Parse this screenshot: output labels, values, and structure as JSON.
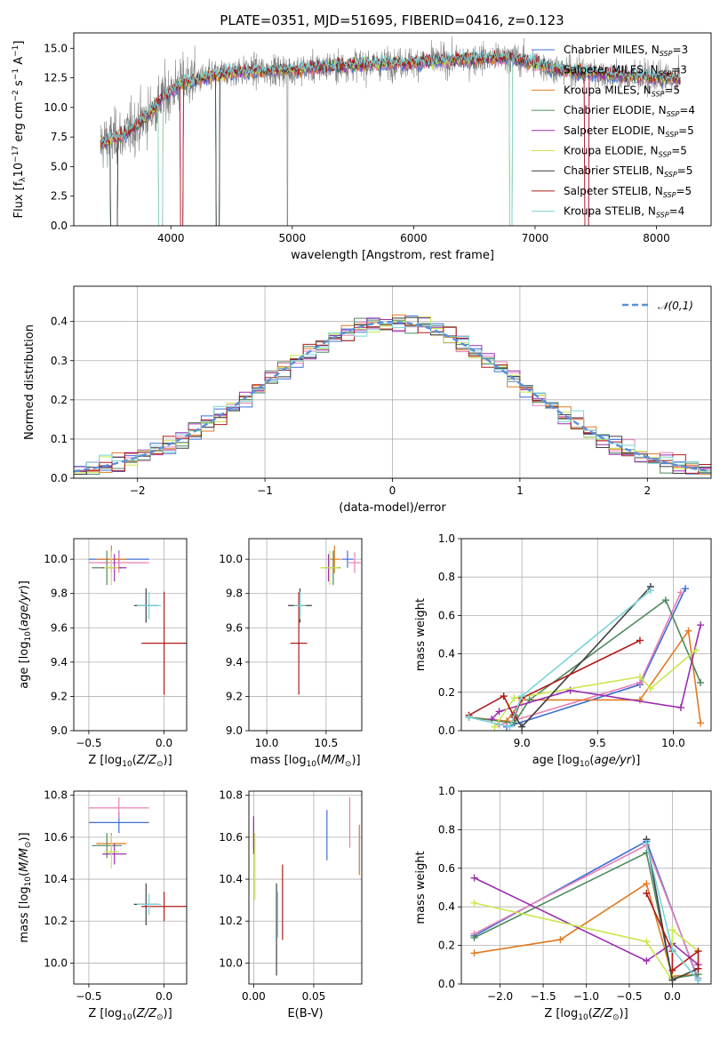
{
  "figure": {
    "title": "PLATE=0351, MJD=51695, FIBERID=0416, z=0.123"
  },
  "colors": {
    "data_spectrum": "#808080",
    "normal_curve": "#5b8fd9",
    "grid": "#b0b0b0"
  },
  "models": [
    {
      "name": "Chabrier MILES, N_SSP=3",
      "imf": "Chabrier",
      "lib": "MILES",
      "nssp": 3,
      "color": "#3f6fd6"
    },
    {
      "name": "Salpeter MILES, N_SSP=3",
      "imf": "Salpeter",
      "lib": "MILES",
      "nssp": 3,
      "color": "#e880b6"
    },
    {
      "name": "Kroupa MILES, N_SSP=5",
      "imf": "Kroupa",
      "lib": "MILES",
      "nssp": 5,
      "color": "#e07a22"
    },
    {
      "name": "Chabrier ELODIE, N_SSP=4",
      "imf": "Chabrier",
      "lib": "ELODIE",
      "nssp": 4,
      "color": "#4f8a5e"
    },
    {
      "name": "Salpeter ELODIE, N_SSP=5",
      "imf": "Salpeter",
      "lib": "ELODIE",
      "nssp": 5,
      "color": "#9b2fae"
    },
    {
      "name": "Kroupa ELODIE, N_SSP=5",
      "imf": "Kroupa",
      "lib": "ELODIE",
      "nssp": 5,
      "color": "#c8e84e"
    },
    {
      "name": "Chabrier STELIB, N_SSP=5",
      "imf": "Chabrier",
      "lib": "STELIB",
      "nssp": 5,
      "color": "#3f3f3f"
    },
    {
      "name": "Salpeter STELIB, N_SSP=5",
      "imf": "Salpeter",
      "lib": "STELIB",
      "nssp": 5,
      "color": "#b01b1b"
    },
    {
      "name": "Kroupa STELIB, N_SSP=4",
      "imf": "Kroupa",
      "lib": "STELIB",
      "nssp": 4,
      "color": "#7ad4d8"
    }
  ],
  "chart_data": [
    {
      "id": "spectrum",
      "type": "line",
      "xlabel": "wavelength [Angstrom, rest frame]",
      "ylabel": "Flux [f_λ10^-17 erg cm^-2 s^-1 A^-1]",
      "xlim": [
        3200,
        8450
      ],
      "ylim": [
        0,
        16.3
      ],
      "xticks": [
        4000,
        5000,
        6000,
        7000,
        8000
      ],
      "yticks": [
        0.0,
        2.5,
        5.0,
        7.5,
        10.0,
        12.5,
        15.0
      ],
      "grid": false,
      "legend": "top-right",
      "data_wavelength_range": [
        3420,
        8200
      ],
      "continuum": [
        [
          3420,
          7.0
        ],
        [
          3600,
          7.6
        ],
        [
          3800,
          9.2
        ],
        [
          3950,
          11.0
        ],
        [
          4100,
          12.1
        ],
        [
          4500,
          13.0
        ],
        [
          5000,
          13.2
        ],
        [
          5500,
          13.6
        ],
        [
          6000,
          13.8
        ],
        [
          6500,
          14.1
        ],
        [
          6800,
          14.2
        ],
        [
          7200,
          13.2
        ],
        [
          7600,
          12.8
        ],
        [
          8000,
          12.5
        ],
        [
          8200,
          12.4
        ]
      ]
    },
    {
      "id": "residuals",
      "type": "histogram",
      "xlabel": "(data-model)/error",
      "ylabel": "Normed distribution",
      "xlim": [
        -2.5,
        2.5
      ],
      "ylim": [
        0,
        0.49
      ],
      "xticks": [
        -2,
        -1,
        0,
        1,
        2
      ],
      "yticks": [
        0.0,
        0.1,
        0.2,
        0.3,
        0.4
      ],
      "grid": true,
      "legend": "top-right",
      "reference": {
        "name": "𝒩(0,1)",
        "mean": 0,
        "sigma": 1
      },
      "bin_width": 0.1
    },
    {
      "id": "age_vs_Z",
      "type": "errorbar",
      "xlabel": "Z [log10(Z/Z☉)]",
      "ylabel": "age  [log10(age/yr)]",
      "xlim": [
        -0.6,
        0.15
      ],
      "ylim": [
        9.0,
        10.12
      ],
      "xticks": [
        -0.5,
        0.0
      ],
      "yticks": [
        9.0,
        9.2,
        9.4,
        9.6,
        9.8,
        10.0
      ],
      "grid": true,
      "points": [
        {
          "model": 0,
          "x": -0.3,
          "xerr": 0.2,
          "y": 10.0,
          "yerr": 0.05
        },
        {
          "model": 1,
          "x": -0.3,
          "xerr": 0.2,
          "y": 9.98,
          "yerr": 0.06
        },
        {
          "model": 2,
          "x": -0.35,
          "xerr": 0.1,
          "y": 10.0,
          "yerr": 0.08
        },
        {
          "model": 3,
          "x": -0.38,
          "xerr": 0.1,
          "y": 9.95,
          "yerr": 0.1
        },
        {
          "model": 4,
          "x": -0.33,
          "xerr": 0.08,
          "y": 9.95,
          "yerr": 0.08
        },
        {
          "model": 5,
          "x": -0.35,
          "xerr": 0.05,
          "y": 9.95,
          "yerr": 0.1
        },
        {
          "model": 6,
          "x": -0.12,
          "xerr": 0.08,
          "y": 9.73,
          "yerr": 0.1
        },
        {
          "model": 7,
          "x": 0.0,
          "xerr": 0.15,
          "y": 9.51,
          "yerr": 0.3
        },
        {
          "model": 8,
          "x": -0.1,
          "xerr": 0.08,
          "y": 9.73,
          "yerr": 0.08
        }
      ]
    },
    {
      "id": "age_vs_mass",
      "type": "errorbar",
      "xlabel": "mass [log10(M/M☉)]",
      "ylabel": "",
      "xlim": [
        9.85,
        10.8
      ],
      "ylim": [
        9.0,
        10.12
      ],
      "xticks": [
        10.0,
        10.5
      ],
      "yticks": [
        9.0,
        9.2,
        9.4,
        9.6,
        9.8,
        10.0
      ],
      "grid": true,
      "points": [
        {
          "model": 0,
          "x": 10.68,
          "xerr": 0.05,
          "y": 10.0,
          "yerr": 0.05
        },
        {
          "model": 1,
          "x": 10.74,
          "xerr": 0.05,
          "y": 9.98,
          "yerr": 0.06
        },
        {
          "model": 2,
          "x": 10.57,
          "xerr": 0.05,
          "y": 10.0,
          "yerr": 0.08
        },
        {
          "model": 3,
          "x": 10.56,
          "xerr": 0.06,
          "y": 9.95,
          "yerr": 0.1
        },
        {
          "model": 4,
          "x": 10.52,
          "xerr": 0.05,
          "y": 9.95,
          "yerr": 0.08
        },
        {
          "model": 5,
          "x": 10.53,
          "xerr": 0.08,
          "y": 9.95,
          "yerr": 0.1
        },
        {
          "model": 6,
          "x": 10.28,
          "xerr": 0.1,
          "y": 9.73,
          "yerr": 0.1
        },
        {
          "model": 7,
          "x": 10.27,
          "xerr": 0.07,
          "y": 9.51,
          "yerr": 0.3
        },
        {
          "model": 8,
          "x": 10.28,
          "xerr": 0.05,
          "y": 9.73,
          "yerr": 0.08
        }
      ]
    },
    {
      "id": "mass_vs_Z",
      "type": "errorbar",
      "xlabel": "Z [log10(Z/Z☉)]",
      "ylabel": "mass [log10(M/M☉)]",
      "xlim": [
        -0.6,
        0.15
      ],
      "ylim": [
        9.9,
        10.82
      ],
      "xticks": [
        -0.5,
        0.0
      ],
      "yticks": [
        10.0,
        10.2,
        10.4,
        10.6,
        10.8
      ],
      "grid": true,
      "points": [
        {
          "model": 0,
          "x": -0.3,
          "xerr": 0.2,
          "y": 10.67,
          "yerr": 0.05
        },
        {
          "model": 1,
          "x": -0.3,
          "xerr": 0.2,
          "y": 10.74,
          "yerr": 0.05
        },
        {
          "model": 2,
          "x": -0.35,
          "xerr": 0.1,
          "y": 10.57,
          "yerr": 0.05
        },
        {
          "model": 3,
          "x": -0.38,
          "xerr": 0.1,
          "y": 10.56,
          "yerr": 0.06
        },
        {
          "model": 4,
          "x": -0.33,
          "xerr": 0.08,
          "y": 10.52,
          "yerr": 0.05
        },
        {
          "model": 5,
          "x": -0.35,
          "xerr": 0.05,
          "y": 10.53,
          "yerr": 0.08
        },
        {
          "model": 6,
          "x": -0.12,
          "xerr": 0.08,
          "y": 10.28,
          "yerr": 0.1
        },
        {
          "model": 7,
          "x": 0.0,
          "xerr": 0.15,
          "y": 10.27,
          "yerr": 0.07
        },
        {
          "model": 8,
          "x": -0.1,
          "xerr": 0.08,
          "y": 10.28,
          "yerr": 0.05
        }
      ]
    },
    {
      "id": "mass_vs_ebv",
      "type": "errorbar",
      "xlabel": "E(B-V)",
      "ylabel": "",
      "xlim": [
        -0.004,
        0.09
      ],
      "ylim": [
        9.9,
        10.82
      ],
      "xticks": [
        0.0,
        0.05
      ],
      "yticks": [
        10.0,
        10.2,
        10.4,
        10.6,
        10.8
      ],
      "grid": true,
      "points": [
        {
          "model": 0,
          "x": 0.061,
          "xerr": 0,
          "y": 10.61,
          "yerr": 0.12
        },
        {
          "model": 1,
          "x": 0.08,
          "xerr": 0,
          "y": 10.67,
          "yerr": 0.12
        },
        {
          "model": 2,
          "x": 0.088,
          "xerr": 0,
          "y": 10.54,
          "yerr": 0.12
        },
        {
          "model": 3,
          "x": 0.0,
          "xerr": 0,
          "y": 10.62,
          "yerr": 0.08
        },
        {
          "model": 4,
          "x": 0.0,
          "xerr": 0,
          "y": 10.61,
          "yerr": 0.09
        },
        {
          "model": 5,
          "x": 0.001,
          "xerr": 0,
          "y": 10.46,
          "yerr": 0.16
        },
        {
          "model": 6,
          "x": 0.019,
          "xerr": 0,
          "y": 10.16,
          "yerr": 0.22
        },
        {
          "model": 7,
          "x": 0.024,
          "xerr": 0,
          "y": 10.29,
          "yerr": 0.18
        },
        {
          "model": 8,
          "x": 0.02,
          "xerr": 0,
          "y": 10.23,
          "yerr": 0.11
        }
      ]
    },
    {
      "id": "weight_vs_age",
      "type": "line",
      "xlabel": "age  [log10(age/yr)]",
      "ylabel": "mass weight",
      "xlim": [
        8.6,
        10.25
      ],
      "ylim": [
        0,
        1.0
      ],
      "xticks": [
        9.0,
        9.5,
        10.0
      ],
      "yticks": [
        0.0,
        0.2,
        0.4,
        0.6,
        0.8,
        1.0
      ],
      "grid": true,
      "series": [
        {
          "model": 0,
          "points": [
            [
              8.9,
              0.02
            ],
            [
              9.78,
              0.24
            ],
            [
              10.08,
              0.74
            ]
          ]
        },
        {
          "model": 1,
          "points": [
            [
              8.85,
              0.03
            ],
            [
              9.78,
              0.25
            ],
            [
              10.05,
              0.72
            ]
          ]
        },
        {
          "model": 2,
          "points": [
            [
              8.65,
              0.07
            ],
            [
              8.9,
              0.05
            ],
            [
              9.0,
              0.16
            ],
            [
              9.78,
              0.16
            ],
            [
              10.1,
              0.52
            ],
            [
              10.18,
              0.04
            ]
          ]
        },
        {
          "model": 3,
          "points": [
            [
              8.65,
              0.07
            ],
            [
              8.95,
              0.04
            ],
            [
              9.05,
              0.16
            ],
            [
              9.95,
              0.68
            ],
            [
              10.18,
              0.25
            ]
          ]
        },
        {
          "model": 4,
          "points": [
            [
              8.8,
              0.06
            ],
            [
              8.85,
              0.1
            ],
            [
              9.32,
              0.21
            ],
            [
              10.05,
              0.12
            ],
            [
              10.18,
              0.55
            ]
          ]
        },
        {
          "model": 5,
          "points": [
            [
              8.82,
              0.02
            ],
            [
              8.95,
              0.17
            ],
            [
              9.78,
              0.28
            ],
            [
              9.85,
              0.22
            ],
            [
              10.15,
              0.42
            ]
          ]
        },
        {
          "model": 6,
          "points": [
            [
              8.95,
              0.08
            ],
            [
              9.0,
              0.02
            ],
            [
              9.85,
              0.75
            ]
          ]
        },
        {
          "model": 7,
          "points": [
            [
              8.65,
              0.08
            ],
            [
              8.88,
              0.18
            ],
            [
              8.95,
              0.07
            ],
            [
              9.0,
              0.17
            ],
            [
              9.78,
              0.47
            ]
          ]
        },
        {
          "model": 8,
          "points": [
            [
              8.65,
              0.07
            ],
            [
              8.92,
              0.02
            ],
            [
              9.0,
              0.18
            ],
            [
              9.85,
              0.73
            ]
          ]
        }
      ]
    },
    {
      "id": "weight_vs_Z",
      "type": "line",
      "xlabel": "Z [log10(Z/Z☉)]",
      "ylabel": "mass weight",
      "xlim": [
        -2.45,
        0.45
      ],
      "ylim": [
        0,
        1.0
      ],
      "xticks": [
        -2.0,
        -1.5,
        -1.0,
        -0.5,
        0.0
      ],
      "yticks": [
        0.0,
        0.2,
        0.4,
        0.6,
        0.8,
        1.0
      ],
      "grid": true,
      "series": [
        {
          "model": 0,
          "points": [
            [
              -2.3,
              0.25
            ],
            [
              -0.3,
              0.74
            ],
            [
              0.3,
              0.02
            ]
          ]
        },
        {
          "model": 1,
          "points": [
            [
              -2.3,
              0.26
            ],
            [
              -0.3,
              0.72
            ],
            [
              0.3,
              0.03
            ]
          ]
        },
        {
          "model": 2,
          "points": [
            [
              -2.3,
              0.16
            ],
            [
              -1.3,
              0.23
            ],
            [
              -0.3,
              0.52
            ],
            [
              0.0,
              0.04
            ],
            [
              0.3,
              0.05
            ]
          ]
        },
        {
          "model": 3,
          "points": [
            [
              -2.3,
              0.24
            ],
            [
              -0.3,
              0.68
            ],
            [
              0.0,
              0.03
            ],
            [
              0.3,
              0.05
            ]
          ]
        },
        {
          "model": 4,
          "points": [
            [
              -2.3,
              0.55
            ],
            [
              -0.3,
              0.12
            ],
            [
              0.0,
              0.21
            ],
            [
              0.3,
              0.1
            ]
          ]
        },
        {
          "model": 5,
          "points": [
            [
              -2.3,
              0.42
            ],
            [
              -0.3,
              0.22
            ],
            [
              0.0,
              0.02
            ],
            [
              0.0,
              0.28
            ],
            [
              0.3,
              0.17
            ]
          ]
        },
        {
          "model": 6,
          "points": [
            [
              -0.3,
              0.75
            ],
            [
              0.0,
              0.02
            ],
            [
              0.3,
              0.08
            ]
          ]
        },
        {
          "model": 7,
          "points": [
            [
              -0.3,
              0.47
            ],
            [
              0.0,
              0.17
            ],
            [
              0.0,
              0.07
            ],
            [
              0.3,
              0.17
            ],
            [
              0.3,
              0.08
            ]
          ]
        },
        {
          "model": 8,
          "points": [
            [
              -0.3,
              0.73
            ],
            [
              0.0,
              0.18
            ],
            [
              0.3,
              0.02
            ]
          ]
        }
      ]
    }
  ]
}
